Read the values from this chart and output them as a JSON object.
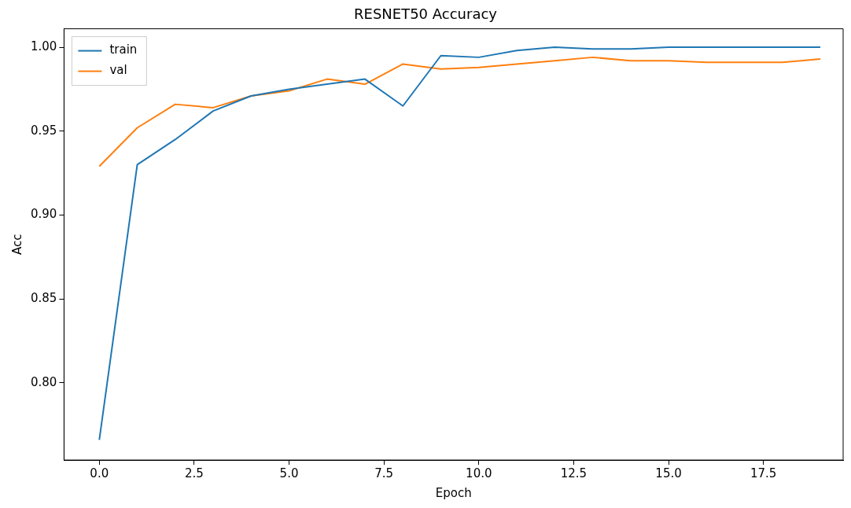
{
  "chart_data": {
    "type": "line",
    "title": "RESNET50 Accuracy",
    "xlabel": "Epoch",
    "ylabel": "Acc",
    "x": [
      0,
      1,
      2,
      3,
      4,
      5,
      6,
      7,
      8,
      9,
      10,
      11,
      12,
      13,
      14,
      15,
      16,
      17,
      18,
      19
    ],
    "series": [
      {
        "name": "train",
        "color": "#1f77b4",
        "values": [
          0.766,
          0.93,
          0.945,
          0.962,
          0.971,
          0.975,
          0.978,
          0.981,
          0.965,
          0.995,
          0.994,
          0.998,
          1.0,
          0.999,
          0.999,
          1.0,
          1.0,
          1.0,
          1.0,
          1.0
        ]
      },
      {
        "name": "val",
        "color": "#ff7f0e",
        "values": [
          0.929,
          0.952,
          0.966,
          0.964,
          0.971,
          0.974,
          0.981,
          0.978,
          0.99,
          0.987,
          0.988,
          0.99,
          0.992,
          0.994,
          0.992,
          0.992,
          0.991,
          0.991,
          0.991,
          0.993
        ]
      }
    ],
    "xlim": [
      -0.93,
      19.6
    ],
    "ylim": [
      0.754,
      1.011
    ],
    "xticks": [
      {
        "value": 0,
        "label": "0.0"
      },
      {
        "value": 2.5,
        "label": "2.5"
      },
      {
        "value": 5,
        "label": "5.0"
      },
      {
        "value": 7.5,
        "label": "7.5"
      },
      {
        "value": 10,
        "label": "10.0"
      },
      {
        "value": 12.5,
        "label": "12.5"
      },
      {
        "value": 15,
        "label": "15.0"
      },
      {
        "value": 17.5,
        "label": "17.5"
      }
    ],
    "yticks": [
      {
        "value": 0.8,
        "label": "0.80"
      },
      {
        "value": 0.85,
        "label": "0.85"
      },
      {
        "value": 0.9,
        "label": "0.90"
      },
      {
        "value": 0.95,
        "label": "0.95"
      },
      {
        "value": 1.0,
        "label": "1.00"
      }
    ],
    "grid": false,
    "legend": "top left",
    "marker": "none",
    "line_style": "solid"
  }
}
